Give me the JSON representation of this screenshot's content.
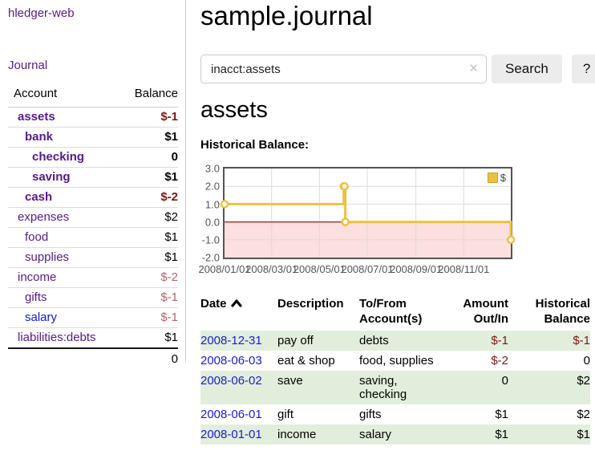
{
  "app": {
    "brand": "hledger-web",
    "nav_journal": "Journal"
  },
  "colors": {
    "link_purple": "#551a8b",
    "link_blue": "#1515e0",
    "negative_strong": "#801515",
    "negative_soft": "#b2636c",
    "row_stripe_green": "#e1eedb",
    "series_gold": "#edc240",
    "chart_negative_region": "#fcdfdf",
    "chart_zero_line": "#9c1c15",
    "button_bg": "#ececec"
  },
  "icons": {
    "clear_search": "✕",
    "sort_ascending": "⌃",
    "legend_swatch": "gold-square"
  },
  "sidebar": {
    "table_headers": {
      "account": "Account",
      "balance": "Balance"
    },
    "accounts": [
      {
        "name": "assets",
        "depth": 1,
        "bold": true,
        "balance": "$-1",
        "tone": "neg-strong",
        "link": "visited"
      },
      {
        "name": "bank",
        "depth": 2,
        "bold": true,
        "balance": "$1",
        "tone": "pos",
        "link": "visited"
      },
      {
        "name": "checking",
        "depth": 3,
        "bold": true,
        "balance": "0",
        "tone": "pos",
        "link": "visited"
      },
      {
        "name": "saving",
        "depth": 3,
        "bold": true,
        "balance": "$1",
        "tone": "pos",
        "link": "visited"
      },
      {
        "name": "cash",
        "depth": 2,
        "bold": true,
        "balance": "$-2",
        "tone": "neg-strong",
        "link": "visited"
      },
      {
        "name": "expenses",
        "depth": 1,
        "bold": false,
        "balance": "$2",
        "tone": "pos",
        "link": "visited"
      },
      {
        "name": "food",
        "depth": 2,
        "bold": false,
        "balance": "$1",
        "tone": "pos",
        "link": "visited"
      },
      {
        "name": "supplies",
        "depth": 2,
        "bold": false,
        "balance": "$1",
        "tone": "pos",
        "link": "visited"
      },
      {
        "name": "income",
        "depth": 1,
        "bold": false,
        "balance": "$-2",
        "tone": "neg-soft",
        "link": "visited"
      },
      {
        "name": "gifts",
        "depth": 2,
        "bold": false,
        "balance": "$-1",
        "tone": "neg-soft",
        "link": "visited"
      },
      {
        "name": "salary",
        "depth": 2,
        "bold": false,
        "balance": "$-1",
        "tone": "neg-soft",
        "link": "unvisited"
      },
      {
        "name": "liabilities:debts",
        "depth": 1,
        "bold": false,
        "balance": "$1",
        "tone": "pos",
        "link": "visited"
      }
    ],
    "total": "0"
  },
  "header": {
    "title": "sample.journal"
  },
  "search": {
    "query": "inacct:assets",
    "button": "Search",
    "help_button": "?"
  },
  "account_page": {
    "heading": "assets",
    "chart_label": "Historical Balance:"
  },
  "chart_data": {
    "type": "line",
    "title": "Historical Balance",
    "step": true,
    "series": [
      {
        "name": "$",
        "color": "#edc240",
        "points": [
          [
            "2008-01-01",
            1
          ],
          [
            "2008-06-01",
            2
          ],
          [
            "2008-06-02",
            2
          ],
          [
            "2008-06-03",
            0
          ],
          [
            "2008-12-31",
            -1
          ]
        ]
      }
    ],
    "x_range": [
      "2008-01-01",
      "2008-12-31"
    ],
    "x_ticks": [
      "2008/01/01",
      "2008/03/01",
      "2008/05/01",
      "2008/07/01",
      "2008/09/01",
      "2008/11/01"
    ],
    "y_ticks": [
      -2,
      -1,
      0,
      1,
      2,
      3
    ],
    "y_tick_labels": [
      "-2.0",
      "-1.0",
      "0.0",
      "1.0",
      "2.0",
      "3.0"
    ],
    "ylim": [
      -2,
      3
    ],
    "grid": true,
    "legend_position": "top-right",
    "negative_region_color": "#fcdfdf",
    "zero_line_color": "#9c1c15"
  },
  "register": {
    "sort": {
      "column": "date",
      "direction": "ascending"
    },
    "headers": {
      "date": "Date",
      "description": "Description",
      "accounts": "To/From\nAccount(s)",
      "amount": "Amount\nOut/In",
      "balance": "Historical\nBalance"
    },
    "rows": [
      {
        "date": "2008-12-31",
        "description": "pay off",
        "accounts": "debts",
        "amount": "$-1",
        "amount_tone": "neg",
        "balance": "$-1",
        "balance_tone": "neg"
      },
      {
        "date": "2008-06-03",
        "description": "eat & shop",
        "accounts": "food, supplies",
        "amount": "$-2",
        "amount_tone": "neg",
        "balance": "0",
        "balance_tone": "pos"
      },
      {
        "date": "2008-06-02",
        "description": "save",
        "accounts": "saving, checking",
        "amount": "0",
        "amount_tone": "pos",
        "balance": "$2",
        "balance_tone": "pos"
      },
      {
        "date": "2008-06-01",
        "description": "gift",
        "accounts": "gifts",
        "amount": "$1",
        "amount_tone": "pos",
        "balance": "$2",
        "balance_tone": "pos"
      },
      {
        "date": "2008-01-01",
        "description": "income",
        "accounts": "salary",
        "amount": "$1",
        "amount_tone": "pos",
        "balance": "$1",
        "balance_tone": "pos"
      }
    ]
  }
}
